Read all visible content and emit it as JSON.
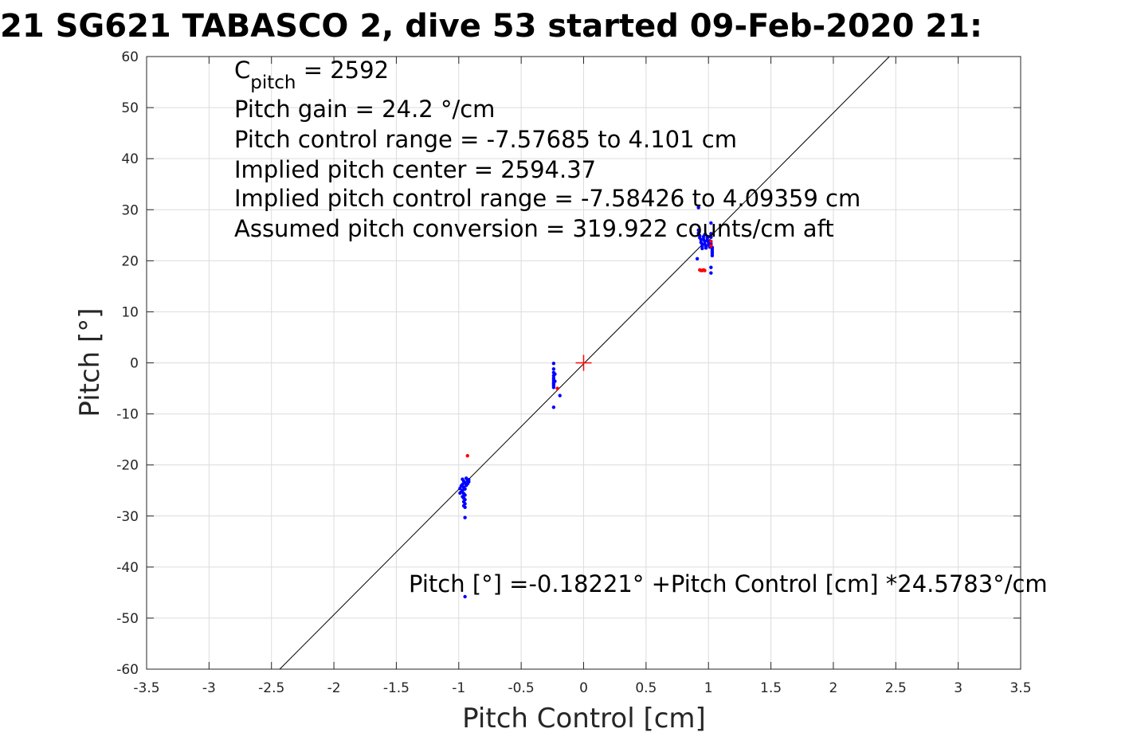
{
  "chart_data": {
    "type": "scatter",
    "title": "21 SG621 TABASCO 2, dive 53 started 09-Feb-2020 21:",
    "xlabel": "Pitch Control [cm]",
    "ylabel": "Pitch [°]",
    "xlim": [
      -3.5,
      3.5
    ],
    "ylim": [
      -60,
      60
    ],
    "xticks": [
      -3.5,
      -3,
      -2.5,
      -2,
      -1.5,
      -1,
      -0.5,
      0,
      0.5,
      1,
      1.5,
      2,
      2.5,
      3,
      3.5
    ],
    "yticks": [
      -60,
      -50,
      -40,
      -30,
      -20,
      -10,
      0,
      10,
      20,
      30,
      40,
      50,
      60
    ],
    "grid": true,
    "annotations": {
      "cpitch_base": "C",
      "cpitch_sub": "pitch",
      "cpitch_value": " = 2592",
      "gain": "Pitch gain = 24.2 °/cm",
      "control_range": "Pitch control range = -7.57685 to 4.101 cm",
      "implied_center": "Implied pitch center = 2594.37",
      "implied_range": "Implied pitch control range = -7.58426 to 4.09359 cm",
      "conversion": "Assumed pitch conversion = 319.922 counts/cm aft",
      "fit": "Pitch [°] =-0.18221° +Pitch Control [cm] *24.5783°/cm"
    },
    "fit_line": {
      "intercept": -0.18221,
      "slope": 24.5783,
      "color": "#000000"
    },
    "center_marker": {
      "x": 0,
      "y": 0,
      "color": "#ff0000"
    },
    "series": [
      {
        "color": "#0000ff",
        "points": [
          [
            -0.97,
            -22.8
          ],
          [
            -0.96,
            -23.2
          ],
          [
            -0.95,
            -23.5
          ],
          [
            -0.97,
            -23.8
          ],
          [
            -0.98,
            -24.1
          ],
          [
            -0.96,
            -24.4
          ],
          [
            -0.95,
            -24.7
          ],
          [
            -0.97,
            -25.0
          ],
          [
            -0.98,
            -25.3
          ],
          [
            -0.96,
            -25.6
          ],
          [
            -0.95,
            -25.9
          ],
          [
            -0.97,
            -26.2
          ],
          [
            -0.96,
            -26.5
          ],
          [
            -0.95,
            -26.8
          ],
          [
            -0.96,
            -27.2
          ],
          [
            -0.95,
            -27.6
          ],
          [
            -0.96,
            -28.0
          ],
          [
            -0.95,
            -28.3
          ],
          [
            -0.94,
            -22.6
          ],
          [
            -0.93,
            -23.0
          ],
          [
            -0.92,
            -23.3
          ],
          [
            -0.93,
            -23.7
          ],
          [
            -0.94,
            -24.0
          ],
          [
            -0.92,
            -22.9
          ],
          [
            -0.99,
            -24.6
          ],
          [
            -0.99,
            -25.5
          ],
          [
            -0.95,
            -30.3
          ],
          [
            -0.95,
            -45.8
          ],
          [
            -0.24,
            -0.1
          ],
          [
            -0.24,
            -1.2
          ],
          [
            -0.24,
            -1.9
          ],
          [
            -0.24,
            -2.5
          ],
          [
            -0.24,
            -3.0
          ],
          [
            -0.24,
            -3.4
          ],
          [
            -0.24,
            -3.8
          ],
          [
            -0.24,
            -4.1
          ],
          [
            -0.24,
            -4.4
          ],
          [
            -0.24,
            -4.8
          ],
          [
            -0.23,
            -2.2
          ],
          [
            -0.23,
            -3.6
          ],
          [
            -0.19,
            -6.4
          ],
          [
            -0.24,
            -8.7
          ],
          [
            0.92,
            30.4
          ],
          [
            0.92,
            26.0
          ],
          [
            0.92,
            25.4
          ],
          [
            0.93,
            24.9
          ],
          [
            0.93,
            24.5
          ],
          [
            0.94,
            24.1
          ],
          [
            0.94,
            23.6
          ],
          [
            0.95,
            23.2
          ],
          [
            0.95,
            22.8
          ],
          [
            0.96,
            24.7
          ],
          [
            0.96,
            24.2
          ],
          [
            0.97,
            23.8
          ],
          [
            0.97,
            23.3
          ],
          [
            0.98,
            22.9
          ],
          [
            0.98,
            22.5
          ],
          [
            0.99,
            24.5
          ],
          [
            0.99,
            24.0
          ],
          [
            1.0,
            23.6
          ],
          [
            1.0,
            23.1
          ],
          [
            1.01,
            22.7
          ],
          [
            1.01,
            23.9
          ],
          [
            1.02,
            23.4
          ],
          [
            1.02,
            23.0
          ],
          [
            1.03,
            22.6
          ],
          [
            1.03,
            22.2
          ],
          [
            1.03,
            21.8
          ],
          [
            1.03,
            21.4
          ],
          [
            1.03,
            21.0
          ],
          [
            1.02,
            27.4
          ],
          [
            1.02,
            25.3
          ],
          [
            1.02,
            24.6
          ],
          [
            1.02,
            18.7
          ],
          [
            1.02,
            17.6
          ],
          [
            0.91,
            20.4
          ],
          [
            0.97,
            25.1
          ],
          [
            0.95,
            22.4
          ]
        ]
      },
      {
        "color": "#ff0000",
        "points": [
          [
            -0.93,
            -18.2
          ],
          [
            -0.21,
            -5.0
          ],
          [
            0.93,
            18.2
          ],
          [
            0.94,
            18.1
          ],
          [
            0.95,
            18.1
          ],
          [
            0.96,
            18.2
          ],
          [
            0.97,
            18.1
          ],
          [
            1.02,
            23.8
          ],
          [
            1.02,
            22.9
          ]
        ]
      }
    ]
  }
}
